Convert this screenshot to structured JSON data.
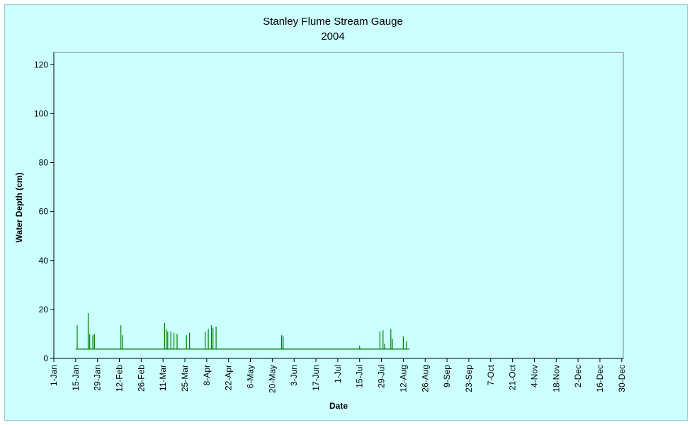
{
  "chart_data": {
    "type": "line",
    "title": "Stanley Flume Stream Gauge",
    "subtitle": "2004",
    "xlabel": "Date",
    "ylabel": "Water Depth (cm)",
    "ylim": [
      0,
      125
    ],
    "yticks": [
      0,
      20,
      40,
      60,
      80,
      100,
      120
    ],
    "xlim": [
      "2004-01-01",
      "2004-12-31"
    ],
    "xtick_labels": [
      "1-Jan",
      "15-Jan",
      "29-Jan",
      "12-Feb",
      "26-Feb",
      "11-Mar",
      "25-Mar",
      "8-Apr",
      "22-Apr",
      "6-May",
      "20-May",
      "3-Jun",
      "17-Jun",
      "1-Jul",
      "15-Jul",
      "29-Jul",
      "12-Aug",
      "26-Aug",
      "9-Sep",
      "23-Sep",
      "7-Oct",
      "21-Oct",
      "4-Nov",
      "18-Nov",
      "2-Dec",
      "16-Dec",
      "30-Dec"
    ],
    "grid": false,
    "legend": "none",
    "series_color": "#008000",
    "plot_background": "#ccffff",
    "baseline": {
      "x": [
        "2004-01-15",
        "2004-08-16"
      ],
      "y": 3.8
    },
    "series": [
      {
        "x": [
          "2004-01-16",
          "2004-01-16",
          "2004-01-16",
          "2004-01-23",
          "2004-01-23",
          "2004-01-23",
          "2004-01-24",
          "2004-01-24",
          "2004-01-24",
          "2004-01-26",
          "2004-01-26",
          "2004-01-26",
          "2004-01-27",
          "2004-01-27",
          "2004-01-27",
          "2004-02-13",
          "2004-02-13",
          "2004-02-13",
          "2004-02-14",
          "2004-02-14",
          "2004-02-14",
          "2004-03-12",
          "2004-03-12",
          "2004-03-12",
          "2004-03-13",
          "2004-03-13",
          "2004-03-13",
          "2004-03-14",
          "2004-03-14",
          "2004-03-14",
          "2004-03-16",
          "2004-03-16",
          "2004-03-16",
          "2004-03-18",
          "2004-03-18",
          "2004-03-18",
          "2004-03-20",
          "2004-03-20",
          "2004-03-20",
          "2004-03-26",
          "2004-03-26",
          "2004-03-26",
          "2004-03-28",
          "2004-03-28",
          "2004-03-28",
          "2004-04-07",
          "2004-04-07",
          "2004-04-07",
          "2004-04-09",
          "2004-04-09",
          "2004-04-09",
          "2004-04-11",
          "2004-04-11",
          "2004-04-11",
          "2004-04-12",
          "2004-04-12",
          "2004-04-12",
          "2004-04-14",
          "2004-04-14",
          "2004-04-14",
          "2004-05-26",
          "2004-05-26",
          "2004-05-26",
          "2004-05-27",
          "2004-05-27",
          "2004-05-27",
          "2004-07-15",
          "2004-07-15",
          "2004-07-15",
          "2004-07-28",
          "2004-07-28",
          "2004-07-28",
          "2004-07-30",
          "2004-07-30",
          "2004-07-30",
          "2004-07-31",
          "2004-07-31",
          "2004-07-31",
          "2004-08-04",
          "2004-08-04",
          "2004-08-04",
          "2004-08-05",
          "2004-08-05",
          "2004-08-05",
          "2004-08-12",
          "2004-08-12",
          "2004-08-12",
          "2004-08-14",
          "2004-08-14",
          "2004-08-14"
        ],
        "values": [
          3.8,
          13.5,
          3.8,
          3.8,
          18.5,
          3.8,
          3.8,
          10,
          3.8,
          3.8,
          9.5,
          3.8,
          3.8,
          10,
          3.8,
          3.8,
          13.5,
          3.8,
          3.8,
          9.5,
          3.8,
          3.8,
          14.5,
          3.8,
          3.8,
          12,
          3.8,
          3.8,
          11,
          3.8,
          3.8,
          11,
          3.8,
          3.8,
          10.5,
          3.8,
          3.8,
          10,
          3.8,
          3.8,
          9.5,
          3.8,
          3.8,
          10.5,
          3.8,
          3.8,
          11,
          3.8,
          3.8,
          12,
          3.8,
          3.8,
          13.5,
          3.8,
          3.8,
          12.5,
          3.8,
          3.8,
          13,
          3.8,
          3.8,
          9.5,
          3.8,
          3.8,
          9,
          3.8,
          3.8,
          5.2,
          3.8,
          3.8,
          11,
          3.8,
          3.8,
          11.5,
          3.8,
          3.8,
          6,
          3.8,
          3.8,
          12,
          3.8,
          3.8,
          8,
          3.8,
          3.8,
          9,
          3.8,
          3.8,
          7,
          3.8
        ]
      }
    ]
  }
}
